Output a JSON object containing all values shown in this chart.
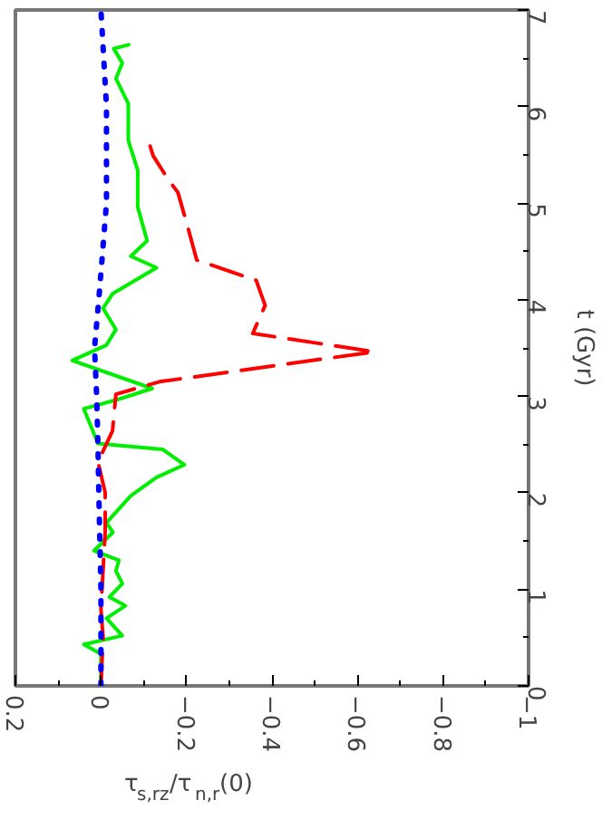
{
  "chart_data": {
    "type": "line",
    "ylabel": "t (Gyr)",
    "xlabel": "τ$_{s,rz}$/τ$_{n,r}$(0)",
    "ylim": [
      0,
      7
    ],
    "yticks": [
      0,
      1,
      2,
      3,
      4,
      5,
      6,
      7
    ],
    "xlim": [
      0.2,
      -1
    ],
    "xticks": [
      {
        "value": 0.2,
        "label": "0.2"
      },
      {
        "value": 0,
        "label": "0"
      },
      {
        "value": -0.2,
        "label": "−0.2"
      },
      {
        "value": -0.4,
        "label": "−0.4"
      },
      {
        "value": -0.6,
        "label": "−0.6"
      },
      {
        "value": -0.8,
        "label": "−0.8"
      },
      {
        "value": -1,
        "label": "−1"
      }
    ],
    "grid": false,
    "marker": "none",
    "series": [
      {
        "color": "#00ee00",
        "line_style": "solid",
        "values": [
          0,
          0.33,
          0.43,
          0.52,
          0.7,
          0.83,
          0.92,
          1.06,
          1.19,
          1.3,
          1.4,
          1.59,
          1.69,
          1.97,
          2.16,
          2.29,
          2.45,
          2.51,
          2.87,
          2.96,
          3.08,
          3.37,
          3.53,
          3.69,
          3.91,
          4.06,
          4.33,
          4.45,
          4.61,
          4.96,
          5.34,
          5.65,
          6.03,
          6.29,
          6.45,
          6.6,
          6.64
        ],
        "x": [
          0,
          0,
          0.04,
          -0.05,
          -0.013,
          -0.057,
          -0.02,
          -0.05,
          -0.035,
          -0.042,
          0.016,
          -0.028,
          -0.013,
          -0.07,
          -0.13,
          -0.195,
          -0.144,
          0.007,
          0.04,
          -0.035,
          -0.12,
          0.067,
          -0.013,
          -0.035,
          -0.005,
          -0.027,
          -0.13,
          -0.07,
          -0.108,
          -0.086,
          -0.086,
          -0.064,
          -0.064,
          -0.035,
          -0.05,
          -0.03,
          -0.065
        ]
      },
      {
        "color": "#ff0000",
        "line_style": "dashed",
        "values": [
          0,
          0.5,
          0.8,
          1.2,
          1.6,
          2.0,
          2.32,
          2.64,
          3.02,
          3.15,
          3.46,
          3.65,
          3.94,
          4.2,
          4.41,
          4.77,
          5.11,
          5.24,
          5.49,
          5.59
        ],
        "x": [
          0,
          -0.005,
          0,
          -0.005,
          -0.01,
          -0.01,
          0.007,
          -0.027,
          -0.035,
          -0.137,
          -0.64,
          -0.355,
          -0.384,
          -0.363,
          -0.224,
          -0.202,
          -0.18,
          -0.158,
          -0.122,
          -0.115
        ]
      },
      {
        "color": "#0000ff",
        "line_style": "dotted",
        "values": [
          0,
          1,
          2,
          2.5,
          3,
          3.5,
          4,
          5,
          6,
          7
        ],
        "x": [
          0,
          0,
          0.005,
          0.007,
          0.01,
          0.015,
          0.005,
          -0.013,
          -0.013,
          0
        ]
      }
    ]
  }
}
